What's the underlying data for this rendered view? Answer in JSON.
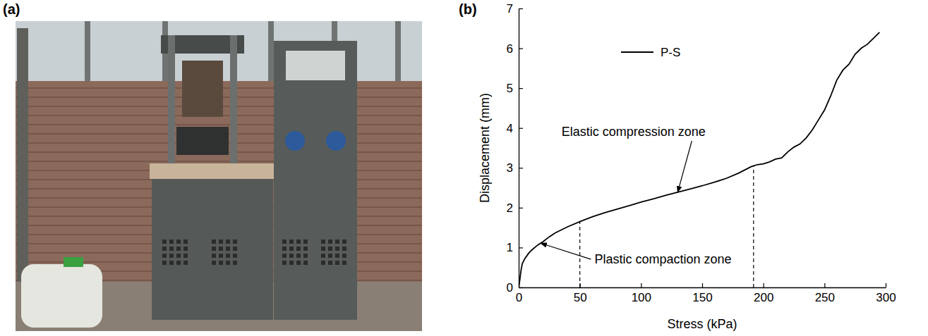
{
  "photo": {
    "label": "(a)"
  },
  "chart_data": {
    "type": "line",
    "panel_label": "(b)",
    "xlabel": "Stress (kPa)",
    "ylabel": "Displacement (mm)",
    "x": [
      0,
      1,
      2,
      3,
      5,
      8,
      10,
      15,
      20,
      25,
      30,
      40,
      50,
      60,
      70,
      80,
      90,
      100,
      110,
      120,
      130,
      140,
      150,
      160,
      170,
      180,
      190,
      195,
      200,
      205,
      210,
      215,
      220,
      225,
      230,
      235,
      240,
      245,
      250,
      255,
      260,
      265,
      270,
      275,
      280,
      285,
      290,
      295
    ],
    "series": [
      {
        "name": "P-S",
        "color": "#000000",
        "values": [
          0,
          0.2,
          0.45,
          0.6,
          0.72,
          0.85,
          0.92,
          1.05,
          1.15,
          1.27,
          1.37,
          1.52,
          1.65,
          1.77,
          1.87,
          1.96,
          2.05,
          2.14,
          2.22,
          2.31,
          2.39,
          2.47,
          2.55,
          2.64,
          2.74,
          2.87,
          3.03,
          3.08,
          3.1,
          3.15,
          3.22,
          3.25,
          3.4,
          3.52,
          3.6,
          3.75,
          3.95,
          4.2,
          4.45,
          4.8,
          5.2,
          5.45,
          5.6,
          5.85,
          6.0,
          6.1,
          6.25,
          6.4
        ]
      }
    ],
    "xlim": [
      0,
      300
    ],
    "xticks": [
      0,
      50,
      100,
      150,
      200,
      250,
      300
    ],
    "ylim": [
      0,
      7
    ],
    "yticks": [
      0,
      1,
      2,
      3,
      4,
      5,
      6,
      7
    ],
    "legend": "upper left",
    "zone_boundaries": [
      {
        "x": 50,
        "y": 1.65
      },
      {
        "x": 192,
        "y": 3.05
      }
    ],
    "annotations": [
      {
        "text": "Elastic compression zone",
        "xy": [
          130,
          2.39
        ],
        "xytext": [
          35,
          3.8
        ]
      },
      {
        "text": "Plastic compaction zone",
        "xy": [
          18,
          1.11
        ],
        "xytext": [
          62,
          0.6
        ]
      }
    ]
  }
}
